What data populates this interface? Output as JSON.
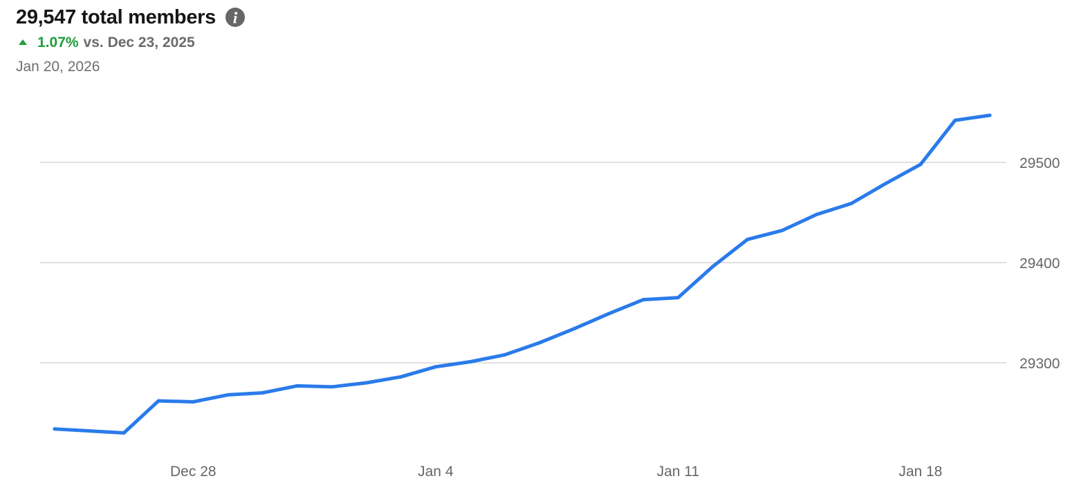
{
  "header": {
    "title": "29,547 total members",
    "info_icon": "info-icon",
    "delta_icon": "triangle-up-icon",
    "delta_value": "1.07%",
    "delta_compare": "vs. Dec 23, 2025",
    "date": "Jan 20, 2026"
  },
  "colors": {
    "line": "#2a7bea",
    "positive": "#1f9d39",
    "grid": "#d6d6d6",
    "tick_text": "#666666"
  },
  "chart_data": {
    "type": "line",
    "title": "29,547 total members",
    "x": [
      "Dec 24",
      "Dec 25",
      "Dec 26",
      "Dec 27",
      "Dec 28",
      "Dec 29",
      "Dec 30",
      "Dec 31",
      "Jan 1",
      "Jan 2",
      "Jan 3",
      "Jan 4",
      "Jan 5",
      "Jan 6",
      "Jan 7",
      "Jan 8",
      "Jan 9",
      "Jan 10",
      "Jan 11",
      "Jan 12",
      "Jan 13",
      "Jan 14",
      "Jan 15",
      "Jan 16",
      "Jan 17",
      "Jan 18",
      "Jan 19",
      "Jan 20"
    ],
    "series": [
      {
        "values": [
          29234,
          29232,
          29230,
          29262,
          29261,
          29268,
          29270,
          29277,
          29276,
          29280,
          29286,
          29296,
          29301,
          29308,
          29320,
          29334,
          29349,
          29363,
          29365,
          29396,
          29423,
          29432,
          29448,
          29459,
          29479,
          29498,
          29542,
          29547
        ]
      }
    ],
    "x_ticks": [
      "Dec 28",
      "Jan 4",
      "Jan 11",
      "Jan 18"
    ],
    "y_ticks": [
      29300,
      29400,
      29500
    ],
    "ylim": [
      29200,
      29600
    ],
    "y_axis_position": "right",
    "grid": true,
    "xlabel": "",
    "ylabel": ""
  }
}
